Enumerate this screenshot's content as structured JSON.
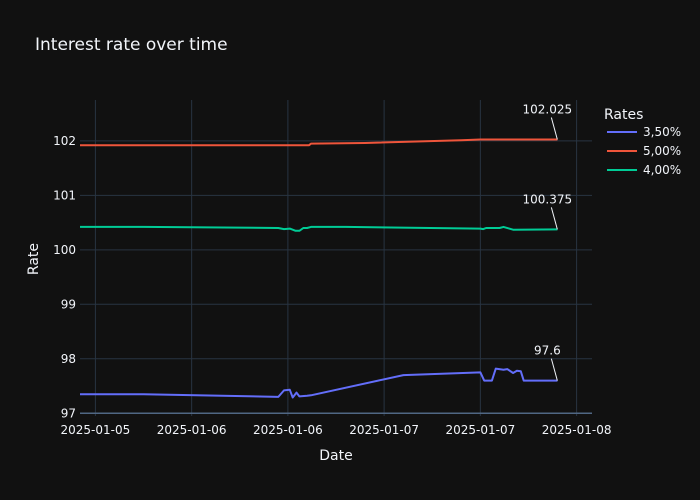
{
  "chart_data": {
    "type": "line",
    "title": "Interest rate over time",
    "xlabel": "Date",
    "ylabel": "Rate",
    "x_ticks": [
      "2025-01-05",
      "2025-01-06",
      "2025-01-06",
      "2025-01-07",
      "2025-01-07",
      "2025-01-08"
    ],
    "y_ticks": [
      "97",
      "98",
      "99",
      "100",
      "101",
      "102"
    ],
    "ylim": [
      96.95,
      102.75
    ],
    "x_tick_positions": [
      0.0,
      0.5,
      1.0,
      1.5,
      2.0,
      2.5
    ],
    "xlim": [
      -0.08,
      2.58
    ],
    "grid": true,
    "legend": {
      "title": "Rates",
      "position": "top-right"
    },
    "series": [
      {
        "name": "3,50%",
        "color": "#636efa",
        "points": [
          [
            -0.08,
            97.35
          ],
          [
            0.25,
            97.35
          ],
          [
            0.95,
            97.3
          ],
          [
            0.98,
            97.42
          ],
          [
            1.01,
            97.43
          ],
          [
            1.025,
            97.29
          ],
          [
            1.045,
            97.38
          ],
          [
            1.06,
            97.31
          ],
          [
            1.1,
            97.32
          ],
          [
            1.12,
            97.33
          ],
          [
            1.6,
            97.7
          ],
          [
            2.0,
            97.75
          ],
          [
            2.02,
            97.6
          ],
          [
            2.06,
            97.6
          ],
          [
            2.08,
            97.82
          ],
          [
            2.12,
            97.8
          ],
          [
            2.14,
            97.81
          ],
          [
            2.17,
            97.74
          ],
          [
            2.19,
            97.78
          ],
          [
            2.21,
            97.77
          ],
          [
            2.225,
            97.6
          ],
          [
            2.28,
            97.6
          ],
          [
            2.4,
            97.6
          ]
        ],
        "label": "97.6"
      },
      {
        "name": "5,00%",
        "color": "#ef553b",
        "points": [
          [
            -0.08,
            101.92
          ],
          [
            1.11,
            101.92
          ],
          [
            1.12,
            101.95
          ],
          [
            1.4,
            101.96
          ],
          [
            1.9,
            102.01
          ],
          [
            2.0,
            102.025
          ],
          [
            2.4,
            102.025
          ]
        ],
        "label": "102.025"
      },
      {
        "name": "4,00%",
        "color": "#00cc96",
        "points": [
          [
            -0.08,
            100.42
          ],
          [
            0.25,
            100.42
          ],
          [
            0.95,
            100.4
          ],
          [
            0.98,
            100.38
          ],
          [
            1.01,
            100.39
          ],
          [
            1.04,
            100.35
          ],
          [
            1.06,
            100.35
          ],
          [
            1.08,
            100.4
          ],
          [
            1.1,
            100.4
          ],
          [
            1.12,
            100.42
          ],
          [
            1.3,
            100.42
          ],
          [
            2.0,
            100.39
          ],
          [
            2.015,
            100.38
          ],
          [
            2.03,
            100.4
          ],
          [
            2.1,
            100.4
          ],
          [
            2.12,
            100.42
          ],
          [
            2.15,
            100.39
          ],
          [
            2.17,
            100.37
          ],
          [
            2.4,
            100.375
          ]
        ],
        "label": "100.375"
      }
    ]
  }
}
